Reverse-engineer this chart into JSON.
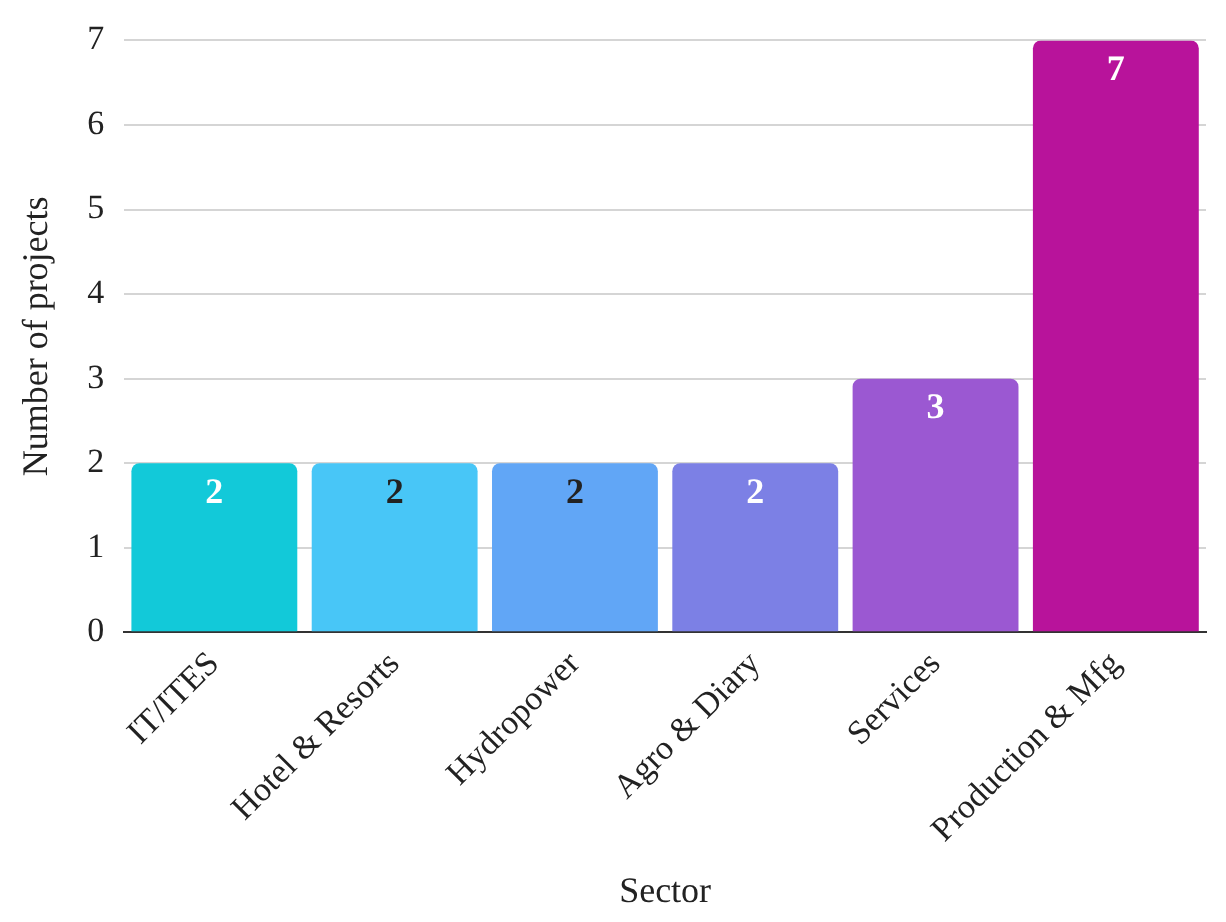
{
  "chart_data": {
    "type": "bar",
    "xlabel": "Sector",
    "ylabel": "Number of projects",
    "categories": [
      "IT/ITES",
      "Hotel & Resorts",
      "Hydropower",
      "Agro & Diary",
      "Services",
      "Production & Mfg"
    ],
    "values": [
      2,
      2,
      2,
      2,
      3,
      7
    ],
    "colors": [
      "#12c9d9",
      "#48c6f7",
      "#61a6f6",
      "#7c80e5",
      "#9b58d2",
      "#b8139b"
    ],
    "ylim": [
      0,
      7
    ],
    "yticks": [
      0,
      1,
      2,
      3,
      4,
      5,
      6,
      7
    ],
    "grid": "y",
    "data_labels": true,
    "legend": false
  }
}
